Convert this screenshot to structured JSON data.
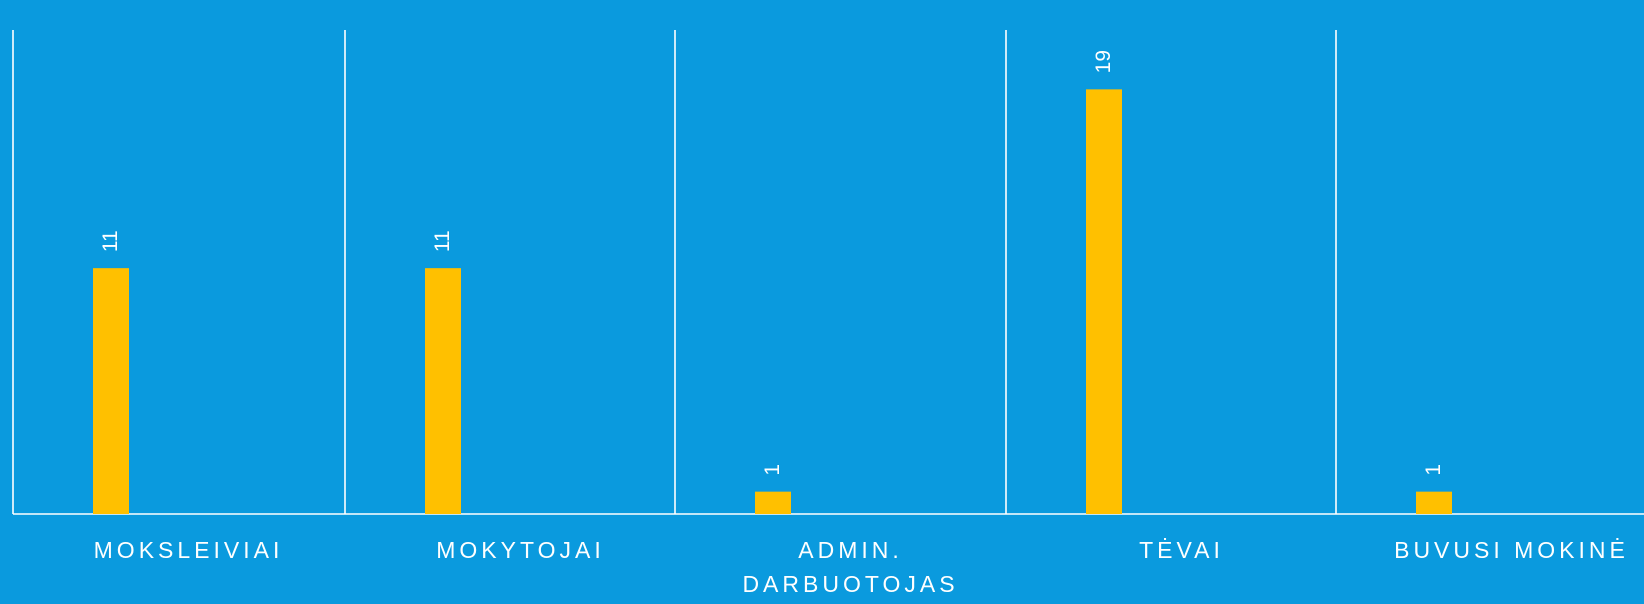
{
  "colors": {
    "background": "#0a9ade",
    "bar": "#ffc000",
    "axis": "#ffffff",
    "text": "#ffffff"
  },
  "chart_data": {
    "type": "bar",
    "categories": [
      [
        "MOKSLEIVIAI"
      ],
      [
        "MOKYTOJAI"
      ],
      [
        "ADMIN.",
        "DARBUOTOJAS"
      ],
      [
        "TĖVAI"
      ],
      [
        "BUVUSI MOKINĖ"
      ]
    ],
    "values": [
      11,
      11,
      1,
      19,
      1
    ],
    "data_labels": [
      "11",
      "11",
      "1",
      "19",
      "1"
    ],
    "ylim": [
      0,
      20
    ],
    "grid": "vertical category separators",
    "legend": "none"
  }
}
